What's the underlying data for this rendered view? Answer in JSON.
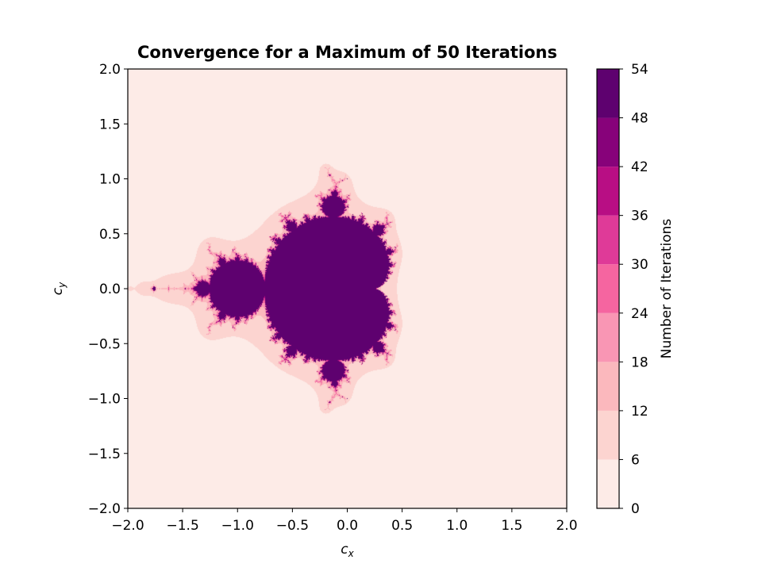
{
  "chart_data": {
    "type": "heatmap",
    "title": "Convergence for a Maximum of 50 Iterations",
    "xlabel": "c",
    "xlabel_sub": "x",
    "ylabel": "c",
    "ylabel_sub": "y",
    "xlim": [
      -2.0,
      2.0
    ],
    "ylim": [
      -2.0,
      2.0
    ],
    "x_ticks": [
      "−2.0",
      "−1.5",
      "−1.0",
      "−0.5",
      "0.0",
      "0.5",
      "1.0",
      "1.5",
      "2.0"
    ],
    "y_ticks": [
      "−2.0",
      "−1.5",
      "−1.0",
      "−0.5",
      "0.0",
      "0.5",
      "1.0",
      "1.5",
      "2.0"
    ],
    "max_iterations": 50,
    "colorbar": {
      "label": "Number of Iterations",
      "levels": [
        0,
        6,
        12,
        18,
        24,
        30,
        36,
        42,
        48,
        54
      ],
      "tick_labels": [
        "0",
        "6",
        "12",
        "18",
        "24",
        "30",
        "36",
        "42",
        "48",
        "54"
      ],
      "colors": [
        "#fdebe7",
        "#fcd4d0",
        "#fbb8bd",
        "#f996b4",
        "#f565a0",
        "#df3a98",
        "#b80e84",
        "#87027a",
        "#5e016f"
      ]
    },
    "grid": false
  }
}
